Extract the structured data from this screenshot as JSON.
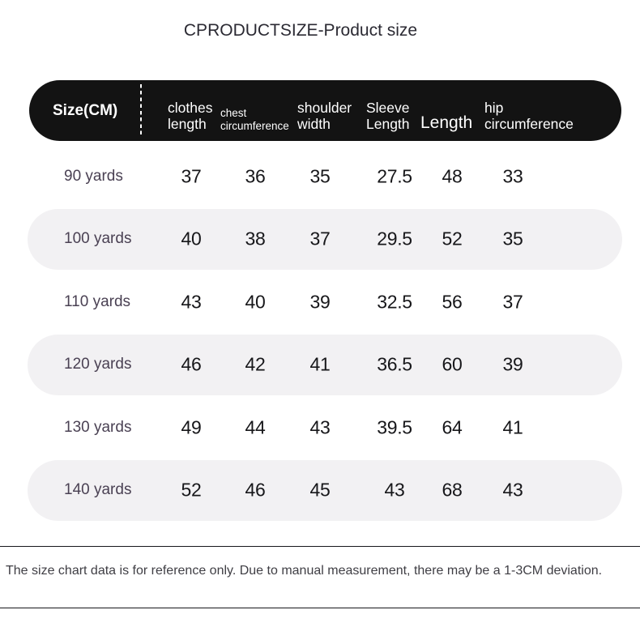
{
  "title": "CPRODUCTSIZE-Product size",
  "table": {
    "corner_label": "Size(CM)",
    "columns": [
      {
        "label": "clothes\nlength"
      },
      {
        "label": "chest\ncircumference"
      },
      {
        "label": "shoulder\nwidth"
      },
      {
        "label": "Sleeve\nLength"
      },
      {
        "label": "Length"
      },
      {
        "label": "hip\ncircumference"
      }
    ],
    "rows": [
      {
        "label": "90 yards",
        "values": [
          "37",
          "36",
          "35",
          "27.5",
          "48",
          "33"
        ]
      },
      {
        "label": "100 yards",
        "values": [
          "40",
          "38",
          "37",
          "29.5",
          "52",
          "35"
        ]
      },
      {
        "label": "110 yards",
        "values": [
          "43",
          "40",
          "39",
          "32.5",
          "56",
          "37"
        ]
      },
      {
        "label": "120 yards",
        "values": [
          "46",
          "42",
          "41",
          "36.5",
          "60",
          "39"
        ]
      },
      {
        "label": "130 yards",
        "values": [
          "49",
          "44",
          "43",
          "39.5",
          "64",
          "41"
        ]
      },
      {
        "label": "140 yards",
        "values": [
          "52",
          "46",
          "45",
          "43",
          "68",
          "43"
        ]
      }
    ]
  },
  "footer": {
    "note": "The size chart data is for reference only. Due to manual measurement, there may be a 1-3CM deviation."
  },
  "colors": {
    "header_bg": "#131313",
    "header_text": "#ffffff",
    "row_alt_bg": "#f2f1f3",
    "row_label": "#4a4153",
    "value_text": "#17171a",
    "title_text": "#2b2a33",
    "divider": "#17171c"
  }
}
